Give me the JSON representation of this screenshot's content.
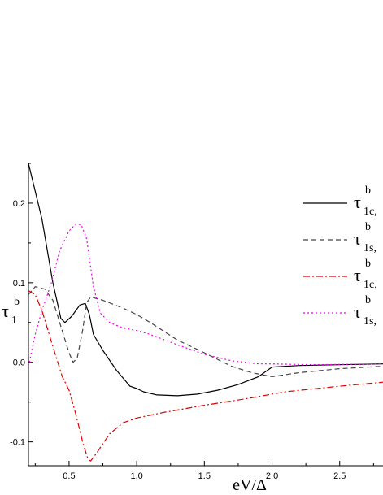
{
  "chart_data": {
    "type": "line",
    "title": "",
    "xlabel": "eV/Δ",
    "ylabel": {
      "symbol": "τ",
      "superscript": "b",
      "subscript": "1"
    },
    "xlim": [
      0.2,
      2.82
    ],
    "ylim": [
      -0.13,
      0.25
    ],
    "x_ticks": [
      {
        "value": 0.5,
        "label": "0.5"
      },
      {
        "value": 1.0,
        "label": "1.0"
      },
      {
        "value": 1.5,
        "label": "1.5"
      },
      {
        "value": 2.0,
        "label": "2.0"
      },
      {
        "value": 2.5,
        "label": "2.5"
      }
    ],
    "y_ticks": [
      {
        "value": 0.2,
        "label": "0.2"
      },
      {
        "value": 0.1,
        "label": "0.1"
      },
      {
        "value": 0.0,
        "label": "0.0"
      },
      {
        "value": -0.1,
        "label": "-0.1"
      }
    ],
    "grid": false,
    "legend_position": "top-right",
    "series": [
      {
        "legend": {
          "symbol": "τ",
          "superscript": "b",
          "subscript": "1c,"
        },
        "color": "#000000",
        "dash": "",
        "points": [
          [
            0.2,
            0.25
          ],
          [
            0.3,
            0.18
          ],
          [
            0.38,
            0.1
          ],
          [
            0.44,
            0.055
          ],
          [
            0.47,
            0.05
          ],
          [
            0.52,
            0.058
          ],
          [
            0.58,
            0.072
          ],
          [
            0.62,
            0.074
          ],
          [
            0.65,
            0.06
          ],
          [
            0.68,
            0.035
          ],
          [
            0.75,
            0.015
          ],
          [
            0.85,
            -0.01
          ],
          [
            0.95,
            -0.03
          ],
          [
            1.0,
            -0.033
          ],
          [
            1.05,
            -0.037
          ],
          [
            1.15,
            -0.041
          ],
          [
            1.3,
            -0.042
          ],
          [
            1.45,
            -0.04
          ],
          [
            1.6,
            -0.035
          ],
          [
            1.75,
            -0.028
          ],
          [
            1.9,
            -0.018
          ],
          [
            2.0,
            -0.006
          ],
          [
            2.2,
            -0.004
          ],
          [
            2.5,
            -0.003
          ],
          [
            2.82,
            -0.002
          ]
        ]
      },
      {
        "legend": {
          "symbol": "τ",
          "superscript": "b",
          "subscript": "1s,"
        },
        "color": "#444444",
        "dash": "6,4",
        "points": [
          [
            0.2,
            0.085
          ],
          [
            0.25,
            0.095
          ],
          [
            0.32,
            0.092
          ],
          [
            0.38,
            0.078
          ],
          [
            0.44,
            0.045
          ],
          [
            0.5,
            0.012
          ],
          [
            0.53,
            0.0
          ],
          [
            0.56,
            0.005
          ],
          [
            0.6,
            0.04
          ],
          [
            0.63,
            0.075
          ],
          [
            0.66,
            0.082
          ],
          [
            0.75,
            0.078
          ],
          [
            0.9,
            0.068
          ],
          [
            1.0,
            0.06
          ],
          [
            1.1,
            0.05
          ],
          [
            1.3,
            0.028
          ],
          [
            1.5,
            0.012
          ],
          [
            1.7,
            -0.005
          ],
          [
            1.85,
            -0.013
          ],
          [
            2.0,
            -0.018
          ],
          [
            2.2,
            -0.013
          ],
          [
            2.5,
            -0.008
          ],
          [
            2.82,
            -0.005
          ]
        ]
      },
      {
        "legend": {
          "symbol": "τ",
          "superscript": "b",
          "subscript": "1c,"
        },
        "color": "#dd0000",
        "dash": "8,3,2,3",
        "points": [
          [
            0.2,
            0.09
          ],
          [
            0.25,
            0.085
          ],
          [
            0.3,
            0.065
          ],
          [
            0.38,
            0.02
          ],
          [
            0.45,
            -0.018
          ],
          [
            0.5,
            -0.035
          ],
          [
            0.55,
            -0.065
          ],
          [
            0.6,
            -0.1
          ],
          [
            0.64,
            -0.122
          ],
          [
            0.66,
            -0.124
          ],
          [
            0.7,
            -0.115
          ],
          [
            0.8,
            -0.09
          ],
          [
            0.9,
            -0.076
          ],
          [
            1.0,
            -0.07
          ],
          [
            1.2,
            -0.063
          ],
          [
            1.5,
            -0.054
          ],
          [
            1.8,
            -0.046
          ],
          [
            2.1,
            -0.037
          ],
          [
            2.5,
            -0.03
          ],
          [
            2.82,
            -0.025
          ]
        ]
      },
      {
        "legend": {
          "symbol": "τ",
          "superscript": "b",
          "subscript": "1s,"
        },
        "color": "#ee00ee",
        "dash": "2,3",
        "points": [
          [
            0.2,
            -0.005
          ],
          [
            0.25,
            0.035
          ],
          [
            0.3,
            0.065
          ],
          [
            0.37,
            0.1
          ],
          [
            0.43,
            0.14
          ],
          [
            0.5,
            0.165
          ],
          [
            0.55,
            0.174
          ],
          [
            0.59,
            0.173
          ],
          [
            0.63,
            0.155
          ],
          [
            0.68,
            0.095
          ],
          [
            0.73,
            0.062
          ],
          [
            0.8,
            0.05
          ],
          [
            0.9,
            0.043
          ],
          [
            1.0,
            0.04
          ],
          [
            1.1,
            0.035
          ],
          [
            1.3,
            0.022
          ],
          [
            1.5,
            0.01
          ],
          [
            1.7,
            0.002
          ],
          [
            1.9,
            -0.002
          ],
          [
            2.0,
            -0.002
          ],
          [
            2.3,
            -0.003
          ],
          [
            2.82,
            -0.002
          ]
        ]
      }
    ]
  }
}
